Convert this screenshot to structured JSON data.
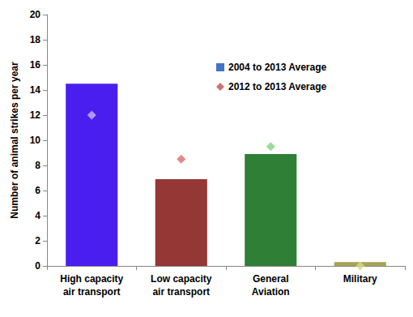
{
  "chart_data": {
    "type": "bar",
    "y_label": "Number of animal strikes per year",
    "categories": [
      "High capacity\nair transport",
      "Low capacity\nair transport",
      "General\nAviation",
      "Military"
    ],
    "series": [
      {
        "name": "2004 to 2013 Average",
        "type": "bar",
        "marker": "square",
        "color": "#4472c4",
        "colors": [
          "#4b1ef0",
          "#953735",
          "#2f7f36",
          "#a3a356"
        ],
        "values": [
          14.5,
          6.9,
          8.9,
          0.3
        ]
      },
      {
        "name": "2012 to 2013 Average",
        "type": "scatter",
        "marker": "diamond",
        "color": "#c0504d",
        "colors": [
          "#c8b8f4",
          "#da6e6c",
          "#7fd57f",
          "#d8d88a"
        ],
        "values": [
          12,
          8.5,
          9.5,
          0
        ]
      }
    ],
    "ylim": [
      0,
      20
    ],
    "yticks": [
      0,
      2,
      4,
      6,
      8,
      10,
      12,
      14,
      16,
      18,
      20
    ],
    "grid": false,
    "legend": "upper right"
  }
}
